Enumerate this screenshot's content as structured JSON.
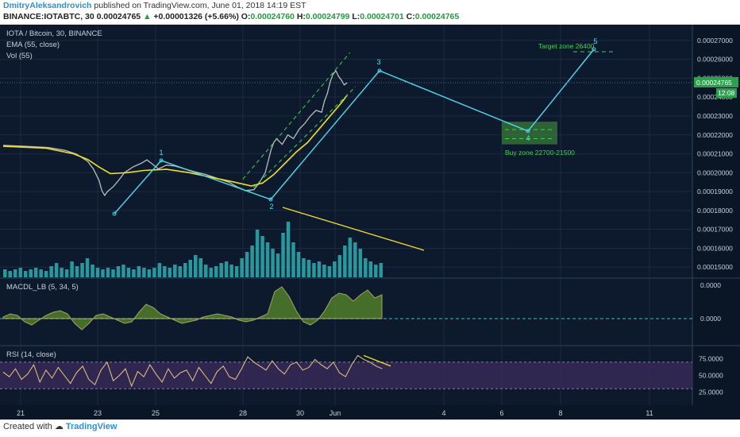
{
  "header": {
    "author": "DmitryAleksandrovich",
    "published": "published on TradingView.com, June 01, 2018 14:19 EST",
    "symbol": "BINANCE:IOTABTC, 30",
    "price": "0.00024765",
    "arrow": "▲",
    "change": "+0.00001326 (+5.66%)",
    "o_label": "O:",
    "o_val": "0.00024760",
    "h_label": "H:",
    "h_val": "0.00024799",
    "l_label": "L:",
    "l_val": "0.00024701",
    "c_label": "C:",
    "c_val": "0.00024765"
  },
  "footer": {
    "created": "Created with",
    "brand": "TradingView"
  },
  "colors": {
    "background": "#0d1a2e",
    "grid": "#1c2b42",
    "price": "#d8d8d8",
    "ema": "#f0e020",
    "volume": "#2ec4c4",
    "wave": "#4fd8ea",
    "channel": "#3cd64a",
    "trend": "#f0e020",
    "zone": "#3a7a3a",
    "macd": "#5a8a2a",
    "rsi_band": "#3a2a5a",
    "rsi": "#e8c880",
    "text": "#c8d0dc"
  },
  "chart_data": [
    {
      "type": "line",
      "title": "IOTA / Bitcoin, 30, BINANCE",
      "legend": [
        "EMA (55, close)",
        "Vol (55)"
      ],
      "x_ticks": [
        "21",
        "23",
        "25",
        "28",
        "30",
        "Jun",
        "4",
        "6",
        "8",
        "11"
      ],
      "y_ticks": [
        "0.00027000",
        "0.00026000",
        "0.00025000",
        "0.00024000",
        "0.00023000",
        "0.00022000",
        "0.00021000",
        "0.00020000",
        "0.00019000",
        "0.00018000",
        "0.00017000",
        "0.00016000",
        "0.00015000"
      ],
      "ylim": [
        0.000148,
        0.000275
      ],
      "last_price": "0.00024765",
      "countdown": "12:08",
      "price_path": [
        [
          0,
          0.0002145
        ],
        [
          8,
          0.000214
        ],
        [
          16,
          0.0002133
        ],
        [
          22,
          0.0002118
        ],
        [
          26,
          0.0002098
        ],
        [
          30,
          0.000206
        ],
        [
          32,
          0.000202
        ],
        [
          34,
          0.000196
        ],
        [
          35,
          0.0001905
        ],
        [
          36,
          0.000188
        ],
        [
          37,
          0.00019
        ],
        [
          39,
          0.0001925
        ],
        [
          41,
          0.000196
        ],
        [
          43,
          0.0002
        ],
        [
          46,
          0.000203
        ],
        [
          49,
          0.000205
        ],
        [
          51,
          0.0002068
        ],
        [
          53,
          0.0002045
        ],
        [
          55,
          0.000202
        ],
        [
          58,
          0.000204
        ],
        [
          61,
          0.0002035
        ],
        [
          64,
          0.0002022
        ],
        [
          68,
          0.0002005
        ],
        [
          72,
          0.000199
        ],
        [
          76,
          0.000197
        ],
        [
          80,
          0.000195
        ],
        [
          83,
          0.0001925
        ],
        [
          86,
          0.0001905
        ],
        [
          89,
          0.000191
        ],
        [
          91,
          0.000195
        ],
        [
          93,
          0.0002
        ],
        [
          94,
          0.000206
        ],
        [
          95,
          0.000212
        ],
        [
          96,
          0.000216
        ],
        [
          97,
          0.000218
        ],
        [
          99,
          0.000215
        ],
        [
          101,
          0.00022
        ],
        [
          103,
          0.000218
        ],
        [
          105,
          0.000223
        ],
        [
          107,
          0.000226
        ],
        [
          109,
          0.00023
        ],
        [
          111,
          0.000233
        ],
        [
          113,
          0.000232
        ],
        [
          114,
          0.000238
        ],
        [
          115,
          0.000242
        ],
        [
          116,
          0.000248
        ],
        [
          117,
          0.000252
        ],
        [
          118,
          0.000254
        ],
        [
          119,
          0.000251
        ],
        [
          120,
          0.000249
        ],
        [
          121,
          0.0002465
        ],
        [
          122,
          0.0002476
        ]
      ],
      "ema_path": [
        [
          0,
          0.000214
        ],
        [
          15,
          0.000213
        ],
        [
          25,
          0.00021
        ],
        [
          30,
          0.000207
        ],
        [
          34,
          0.000203
        ],
        [
          38,
          0.0001995
        ],
        [
          44,
          0.0002
        ],
        [
          50,
          0.0002012
        ],
        [
          58,
          0.0002018
        ],
        [
          66,
          0.0002
        ],
        [
          74,
          0.0001975
        ],
        [
          82,
          0.000195
        ],
        [
          88,
          0.000193
        ],
        [
          92,
          0.0001945
        ],
        [
          96,
          0.000199
        ],
        [
          100,
          0.000205
        ],
        [
          104,
          0.000211
        ],
        [
          108,
          0.000216
        ],
        [
          112,
          0.000223
        ],
        [
          116,
          0.00023
        ],
        [
          120,
          0.000237
        ],
        [
          122,
          0.000241
        ]
      ],
      "volume": [
        5,
        4,
        5,
        6,
        4,
        5,
        6,
        5,
        4,
        7,
        9,
        6,
        5,
        10,
        7,
        9,
        12,
        8,
        6,
        5,
        6,
        5,
        7,
        8,
        6,
        5,
        7,
        6,
        5,
        6,
        9,
        7,
        6,
        8,
        7,
        9,
        11,
        14,
        12,
        8,
        6,
        7,
        9,
        10,
        8,
        7,
        12,
        16,
        20,
        30,
        26,
        22,
        18,
        15,
        28,
        35,
        22,
        16,
        12,
        11,
        9,
        10,
        8,
        7,
        10,
        14,
        20,
        25,
        22,
        18,
        12,
        10,
        8,
        9
      ],
      "waves": [
        {
          "label": "1",
          "x": 43.5,
          "price": 0.0002072
        },
        {
          "label": "2",
          "x": 87.5,
          "price": 0.0001905
        },
        {
          "label": "3",
          "x": 119,
          "price": 0.000254
        },
        {
          "label": "4",
          "x": 167,
          "price": 0.000224
        },
        {
          "label": "5",
          "x": 188,
          "price": 0.000264
        }
      ],
      "buy_zone": {
        "label": "Buy zone 22700-21500",
        "x0": 158,
        "x1": 176,
        "p0": 0.000215,
        "p1": 0.000227
      },
      "target_zone": {
        "label": "Target zone 26400",
        "price": 0.000264
      }
    },
    {
      "type": "area",
      "title": "MACDL_LB (5, 34, 5)",
      "y_ticks": [
        "0.0000",
        "0.0000"
      ]
    },
    {
      "type": "line",
      "title": "RSI (14, close)",
      "y_ticks": [
        "75.0000",
        "50.0000",
        "25.0000"
      ],
      "ylim": [
        10,
        90
      ],
      "band": [
        30,
        70
      ]
    }
  ]
}
